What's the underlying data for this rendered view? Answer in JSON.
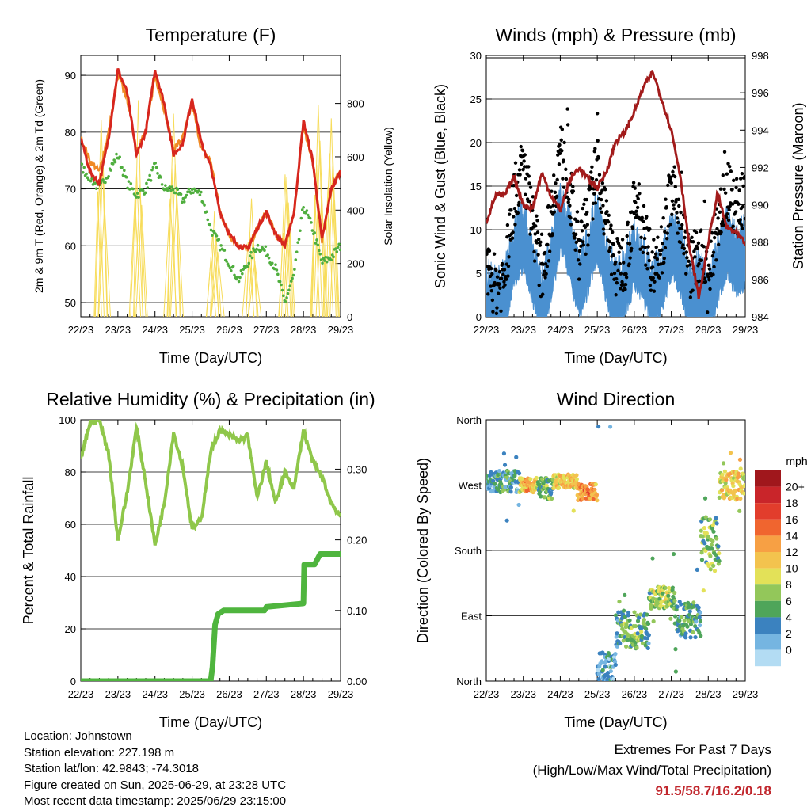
{
  "colors": {
    "temp_2m": "#d7261e",
    "temp_9m": "#f08a24",
    "dewpoint": "#4fae3e",
    "solar": "#f7dc5a",
    "wind": "#4a90d0",
    "gust": "#000000",
    "pressure": "#a21b1b",
    "rh": "#8fc74a",
    "precip": "#4fb53e",
    "extremes": "#c1272d"
  },
  "time_ticks": [
    "22/23",
    "23/23",
    "24/23",
    "25/23",
    "26/23",
    "27/23",
    "28/23",
    "29/23"
  ],
  "footer": {
    "location": "Location: Johnstown",
    "elevation": "Station elevation: 227.198 m",
    "latlon": "Station lat/lon: 42.9843; -74.3018",
    "created": "Figure created on Sun, 2025-06-29, at 23:28 UTC",
    "latest": "Most recent data timestamp: 2025/06/29 23:15:00"
  },
  "extremes": {
    "title": "Extremes For Past 7 Days",
    "subtitle": "(High/Low/Max Wind/Total Precipitation)",
    "values": "91.5/58.7/16.2/0.18"
  },
  "chart_data": [
    {
      "type": "line",
      "title": "Temperature (F)",
      "xlabel": "Time (Day/UTC)",
      "ylabel": "2m & 9m T (Red, Orange) & 2m Td (Green)",
      "y2label": "Solar Insolation (Yellow)",
      "ylim": [
        47.5,
        93.5
      ],
      "yticks": [
        50,
        60,
        70,
        80,
        90
      ],
      "y2lim": [
        0,
        980
      ],
      "y2ticks": [
        0,
        200,
        400,
        600,
        800
      ],
      "x": [
        0,
        0.25,
        0.5,
        0.75,
        1,
        1.25,
        1.5,
        1.75,
        2,
        2.25,
        2.5,
        2.75,
        3,
        3.25,
        3.5,
        3.75,
        4,
        4.25,
        4.5,
        4.75,
        5,
        5.25,
        5.5,
        5.75,
        6,
        6.25,
        6.5,
        6.75,
        7
      ],
      "series": [
        {
          "name": "2m T",
          "values": [
            79,
            73,
            71,
            79,
            91,
            87,
            76,
            80,
            91,
            85,
            76,
            78,
            86,
            78,
            74,
            66,
            62,
            60,
            59.5,
            63,
            66,
            62,
            60,
            66,
            82,
            75,
            61,
            70,
            73
          ]
        },
        {
          "name": "9m T",
          "values": [
            79,
            75,
            73,
            80,
            90,
            86,
            77,
            80,
            90,
            84,
            77,
            79,
            85,
            77,
            75,
            66,
            62,
            60,
            59.5,
            63,
            66,
            62,
            60,
            66,
            81,
            75,
            61,
            70,
            73
          ]
        },
        {
          "name": "2m Td",
          "values": [
            74,
            72,
            70,
            73,
            76,
            71,
            69,
            70,
            74,
            70,
            70,
            68,
            70,
            69,
            63,
            60,
            57,
            54,
            57,
            60,
            59,
            56,
            50,
            55,
            67,
            63,
            57,
            58,
            60
          ]
        },
        {
          "name": "Solar",
          "peaks": [
            [
              0.55,
              860
            ],
            [
              1.55,
              890
            ],
            [
              2.5,
              840
            ],
            [
              3.6,
              500
            ],
            [
              4.6,
              520
            ],
            [
              5.55,
              700
            ],
            [
              6.4,
              950
            ],
            [
              6.75,
              960
            ]
          ]
        }
      ]
    },
    {
      "type": "line",
      "title": "Winds (mph) & Pressure (mb)",
      "xlabel": "Time (Day/UTC)",
      "ylabel": "Sonic Wind & Gust (Blue, Black)",
      "y2label": "Station Pressure (Maroon)",
      "ylim": [
        0,
        30
      ],
      "yticks": [
        0,
        5,
        10,
        15,
        20,
        25,
        30
      ],
      "y2lim": [
        984,
        998
      ],
      "y2ticks": [
        984,
        986,
        988,
        990,
        992,
        994,
        996,
        998
      ],
      "x": [
        0,
        0.25,
        0.5,
        0.75,
        1,
        1.25,
        1.5,
        1.75,
        2,
        2.25,
        2.5,
        2.75,
        3,
        3.25,
        3.5,
        3.75,
        4,
        4.25,
        4.5,
        4.75,
        5,
        5.25,
        5.5,
        5.75,
        6,
        6.25,
        6.5,
        6.75,
        7
      ],
      "series": [
        {
          "name": "Wind",
          "values": [
            3,
            2,
            3,
            8,
            10,
            6,
            2,
            6,
            12,
            9,
            4,
            7,
            11,
            6,
            3,
            4,
            8,
            6,
            3,
            5,
            9,
            7,
            3,
            4,
            2,
            6,
            9,
            7,
            8
          ]
        },
        {
          "name": "Gust",
          "values": [
            6,
            4,
            5,
            14,
            18,
            12,
            5,
            12,
            20,
            15,
            8,
            12,
            18,
            11,
            6,
            7,
            13,
            11,
            6,
            9,
            15,
            12,
            6,
            8,
            4,
            11,
            15,
            13,
            14
          ]
        },
        {
          "name": "Pressure",
          "values": [
            989.1,
            990.5,
            990.5,
            991.5,
            990.0,
            989.8,
            991.7,
            990.5,
            989.7,
            991.3,
            992.0,
            991.4,
            990.9,
            991.8,
            993.4,
            993.9,
            995.0,
            996.3,
            997.1,
            995.6,
            994.0,
            991.5,
            987.6,
            985.0,
            988.0,
            990.6,
            988.8,
            988.5,
            987.9
          ]
        }
      ]
    },
    {
      "type": "line",
      "title": "Relative Humidity (%) & Precipitation (in)",
      "xlabel": "Time (Day/UTC)",
      "ylabel": "Percent & Total Rainfall",
      "ylim": [
        0,
        100
      ],
      "yticks": [
        0,
        20,
        40,
        60,
        80,
        100
      ],
      "y2lim": [
        0,
        0.37
      ],
      "y2ticks": [
        0.0,
        0.1,
        0.2,
        0.3
      ],
      "x": [
        0,
        0.25,
        0.5,
        0.75,
        1,
        1.25,
        1.5,
        1.75,
        2,
        2.25,
        2.5,
        2.75,
        3,
        3.25,
        3.5,
        3.75,
        4,
        4.25,
        4.5,
        4.75,
        5,
        5.25,
        5.5,
        5.75,
        6,
        6.25,
        6.5,
        6.75,
        7
      ],
      "series": [
        {
          "name": "RH",
          "values": [
            85,
            99,
            100,
            87,
            54,
            72,
            97,
            76,
            52,
            68,
            95,
            82,
            58,
            62,
            88,
            96,
            94,
            92,
            94,
            70,
            84,
            68,
            80,
            74,
            96,
            84,
            78,
            68,
            63
          ]
        },
        {
          "name": "Precip",
          "points": [
            [
              0,
              0
            ],
            [
              3.5,
              0
            ],
            [
              3.55,
              0.02
            ],
            [
              3.62,
              0.08
            ],
            [
              3.7,
              0.095
            ],
            [
              3.85,
              0.1
            ],
            [
              4.95,
              0.1
            ],
            [
              5.0,
              0.105
            ],
            [
              6.0,
              0.11
            ],
            [
              6.02,
              0.165
            ],
            [
              6.3,
              0.165
            ],
            [
              6.45,
              0.18
            ],
            [
              7,
              0.18
            ]
          ]
        }
      ]
    },
    {
      "type": "scatter",
      "title": "Wind Direction",
      "xlabel": "Time (Day/UTC)",
      "ylabel": "Direction (Colored By Speed)",
      "yticks": [
        "North",
        "East",
        "South",
        "West",
        "North"
      ],
      "yvalues": [
        0,
        90,
        180,
        270,
        360
      ],
      "legend_title": "mph",
      "legend_labels": [
        "20+",
        "18",
        "16",
        "14",
        "12",
        "10",
        "8",
        "6",
        "4",
        "2",
        "0"
      ],
      "legend_colors": [
        "#a0171c",
        "#c9252a",
        "#e23d2c",
        "#f0652f",
        "#f7a044",
        "#f3c34e",
        "#e3e158",
        "#93c75a",
        "#4fa55a",
        "#3b82bf",
        "#75b5e1",
        "#b3dcf3"
      ],
      "legend_placement": "right",
      "segments": [
        {
          "x": [
            0,
            0.9
          ],
          "dir": [
            275,
            15
          ],
          "speed": 3
        },
        {
          "x": [
            0.9,
            1.4
          ],
          "dir": [
            270,
            10
          ],
          "speed": 11
        },
        {
          "x": [
            1.4,
            1.8
          ],
          "dir": [
            265,
            15
          ],
          "speed": 5
        },
        {
          "x": [
            1.8,
            2.45
          ],
          "dir": [
            275,
            10
          ],
          "speed": 10
        },
        {
          "x": [
            2.45,
            3.0
          ],
          "dir": [
            260,
            12
          ],
          "speed": 13
        },
        {
          "x": [
            3.0,
            3.5
          ],
          "dir": [
            20,
            20
          ],
          "speed": 2
        },
        {
          "x": [
            3.5,
            4.4
          ],
          "dir": [
            70,
            25
          ],
          "speed": 5
        },
        {
          "x": [
            4.4,
            5.1
          ],
          "dir": [
            115,
            15
          ],
          "speed": 7
        },
        {
          "x": [
            5.1,
            5.8
          ],
          "dir": [
            85,
            25
          ],
          "speed": 4
        },
        {
          "x": [
            5.8,
            6.3
          ],
          "dir": [
            190,
            40
          ],
          "speed": 6
        },
        {
          "x": [
            6.3,
            7.0
          ],
          "dir": [
            270,
            20
          ],
          "speed": 10
        }
      ]
    }
  ]
}
